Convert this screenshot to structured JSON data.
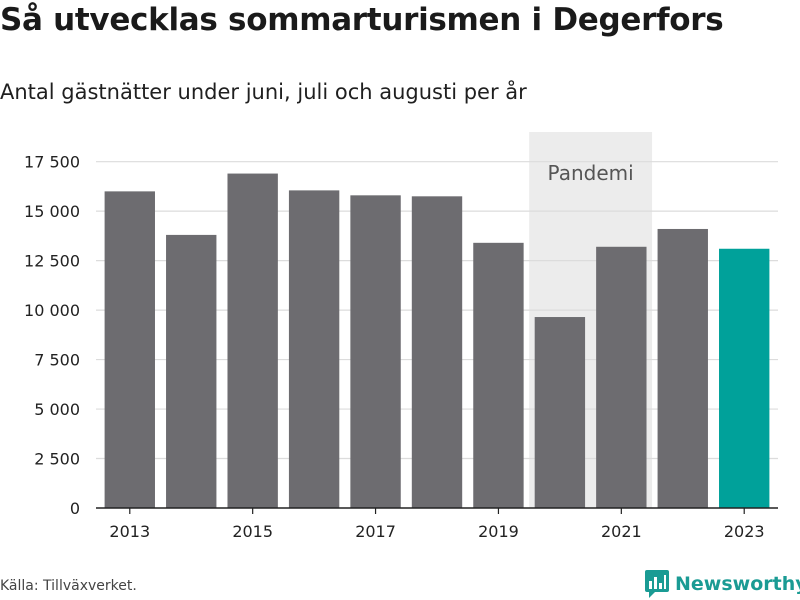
{
  "header": {
    "title": "Så utvecklas sommarturismen i Degerfors",
    "subtitle": "Antal gästnätter under juni, juli och augusti per år"
  },
  "footer": {
    "source": "Källa: Tillväxverket.",
    "brand": "Newsworthy",
    "brand_color": "#1a9b94"
  },
  "chart_data": {
    "type": "bar",
    "categories": [
      "2013",
      "2014",
      "2015",
      "2016",
      "2017",
      "2018",
      "2019",
      "2020",
      "2021",
      "2022",
      "2023"
    ],
    "values": [
      16000,
      13800,
      16900,
      16050,
      15800,
      15750,
      13400,
      9650,
      13200,
      14100,
      13100
    ],
    "highlight_index": 10,
    "colors": {
      "bar": "#6d6c70",
      "highlight": "#00a19a",
      "band": "#ececec"
    },
    "xticks": [
      "2013",
      "2015",
      "2017",
      "2019",
      "2021",
      "2023"
    ],
    "yticks": [
      0,
      2500,
      5000,
      7500,
      10000,
      12500,
      15000,
      17500
    ],
    "ytick_labels": [
      "0",
      "2 500",
      "5 000",
      "7 500",
      "10 000",
      "12 500",
      "15 000",
      "17 500"
    ],
    "ylim": [
      0,
      19000
    ],
    "grid": true,
    "annotation": {
      "label": "Pandemi",
      "from": "2020",
      "to": "2021"
    }
  }
}
